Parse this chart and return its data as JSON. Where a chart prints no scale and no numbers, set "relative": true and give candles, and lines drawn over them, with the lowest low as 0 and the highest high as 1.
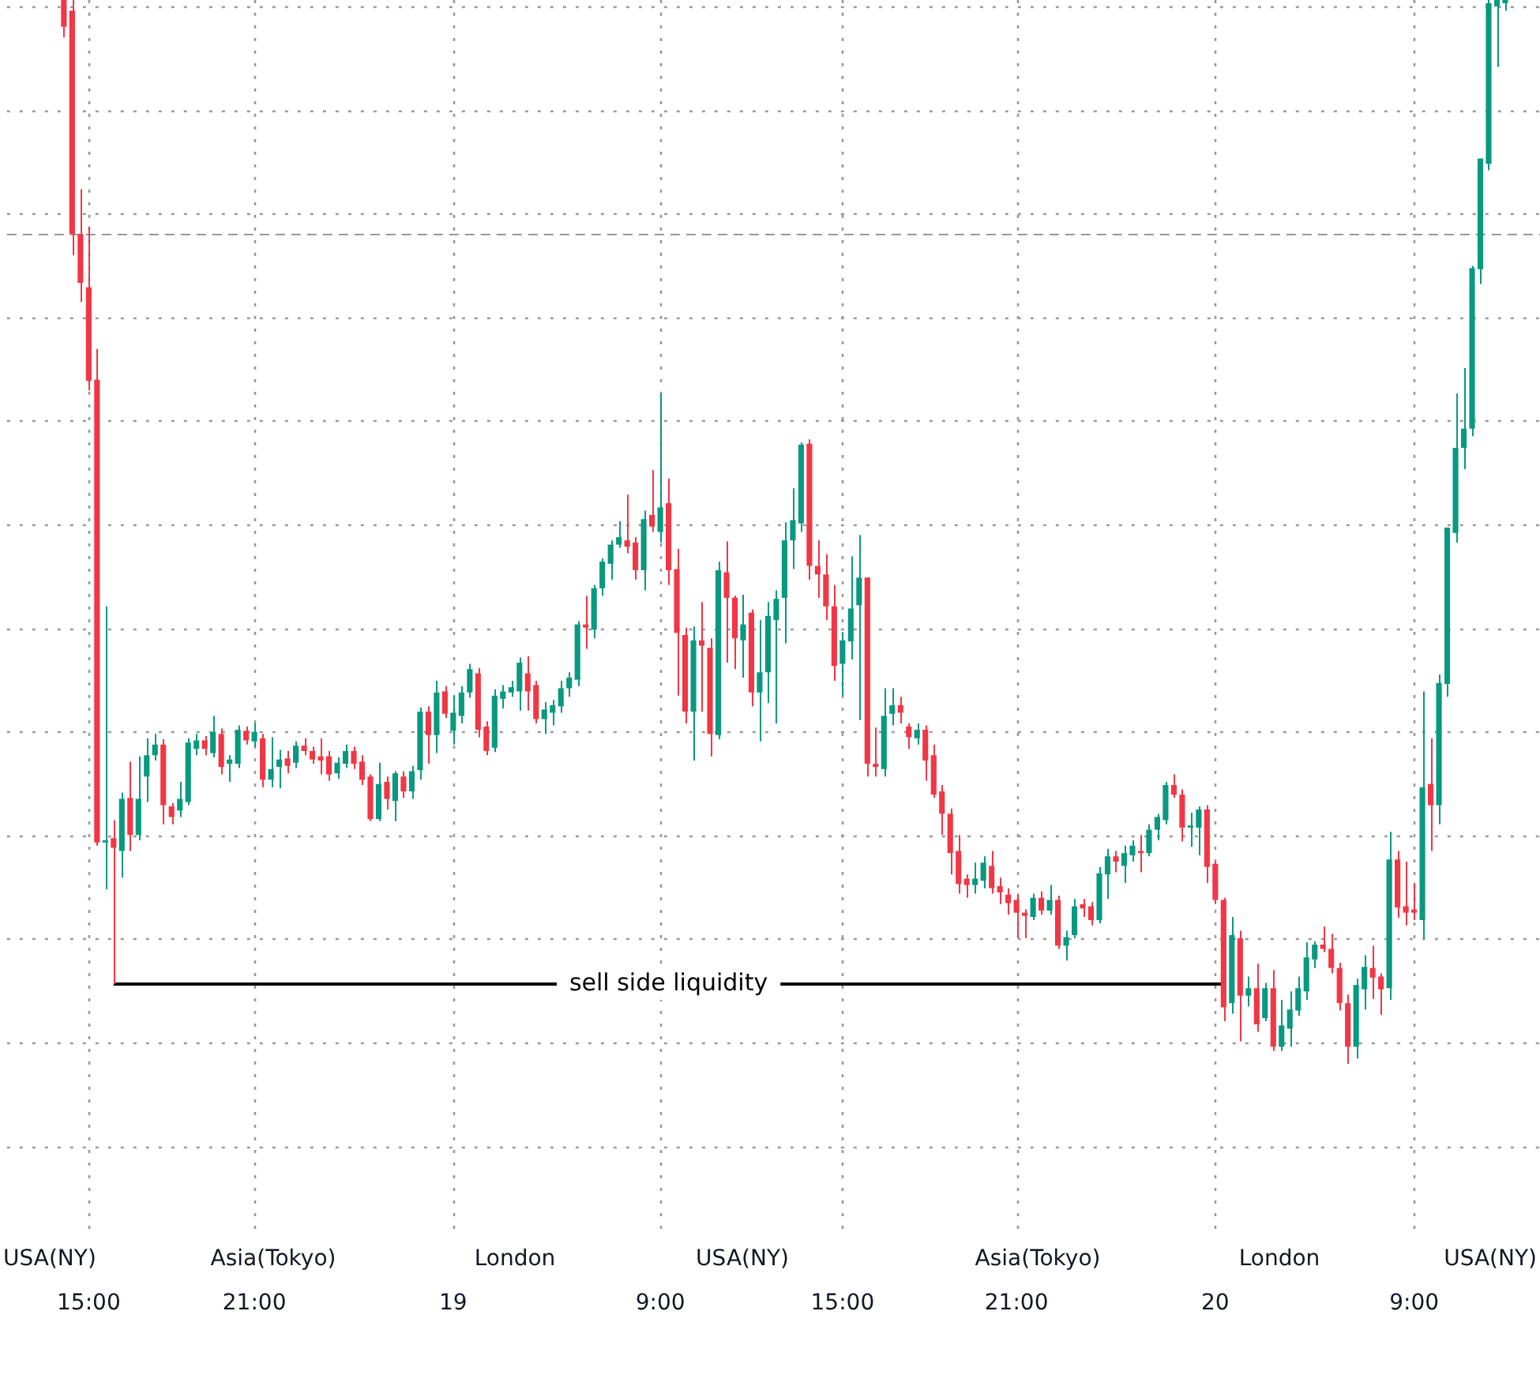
{
  "chart_data": {
    "type": "candlestick",
    "relative": true,
    "categories": [
      null,
      null,
      null,
      "15:00",
      null,
      null,
      null,
      null,
      null,
      null,
      null,
      null,
      null,
      null,
      null,
      null,
      null,
      null,
      null,
      null,
      null,
      null,
      null,
      "21:00",
      null,
      null,
      null,
      null,
      null,
      null,
      null,
      null,
      null,
      null,
      null,
      null,
      null,
      null,
      null,
      null,
      null,
      null,
      null,
      null,
      null,
      null,
      null,
      "19",
      null,
      null,
      null,
      null,
      null,
      null,
      null,
      null,
      null,
      null,
      null,
      null,
      null,
      null,
      null,
      null,
      null,
      null,
      null,
      null,
      null,
      null,
      null,
      null,
      "9:00",
      null,
      null,
      null,
      null,
      null,
      null,
      null,
      null,
      null,
      null,
      null,
      null,
      null,
      null,
      null,
      null,
      null,
      null,
      null,
      null,
      null,
      "15:00",
      null,
      null,
      null,
      null,
      null,
      null,
      null,
      null,
      null,
      null,
      null,
      null,
      null,
      null,
      null,
      null,
      null,
      null,
      null,
      null,
      "21:00",
      null,
      null,
      null,
      null,
      null,
      null,
      null,
      null,
      null,
      null,
      null,
      null,
      null,
      null,
      null,
      null,
      null,
      null,
      null,
      null,
      null,
      null,
      null,
      "20",
      null,
      null,
      null,
      null,
      null,
      null,
      null,
      null,
      null,
      null,
      null,
      null,
      null,
      null,
      null,
      null,
      null,
      null,
      null,
      null,
      null,
      null,
      null,
      "9:00",
      null,
      null,
      null,
      null,
      null,
      null,
      null,
      null,
      null,
      null,
      null
    ],
    "ohlc": [
      [
        1.0,
        1.0,
        0.965,
        0.975
      ],
      [
        0.99,
        1.0,
        0.76,
        0.78
      ],
      [
        0.78,
        0.822,
        0.716,
        0.734
      ],
      [
        0.73,
        0.787,
        0.633,
        0.642
      ],
      [
        0.643,
        0.672,
        0.205,
        0.208
      ],
      [
        0.208,
        0.43,
        0.164,
        0.21
      ],
      [
        0.212,
        0.229,
        0.075,
        0.203
      ],
      [
        0.2,
        0.255,
        0.175,
        0.249
      ],
      [
        0.25,
        0.284,
        0.2,
        0.215
      ],
      [
        0.215,
        0.289,
        0.21,
        0.249
      ],
      [
        0.27,
        0.306,
        0.246,
        0.29
      ],
      [
        0.29,
        0.31,
        0.285,
        0.3
      ],
      [
        0.3,
        0.305,
        0.225,
        0.243
      ],
      [
        0.242,
        0.245,
        0.225,
        0.232
      ],
      [
        0.238,
        0.265,
        0.232,
        0.249
      ],
      [
        0.246,
        0.306,
        0.243,
        0.302
      ],
      [
        0.296,
        0.31,
        0.29,
        0.304
      ],
      [
        0.304,
        0.308,
        0.29,
        0.296
      ],
      [
        0.292,
        0.327,
        0.288,
        0.312
      ],
      [
        0.31,
        0.315,
        0.272,
        0.279
      ],
      [
        0.282,
        0.29,
        0.265,
        0.286
      ],
      [
        0.282,
        0.318,
        0.278,
        0.314
      ],
      [
        0.313,
        0.317,
        0.3,
        0.304
      ],
      [
        0.303,
        0.32,
        0.298,
        0.312
      ],
      [
        0.306,
        0.31,
        0.26,
        0.267
      ],
      [
        0.267,
        0.307,
        0.26,
        0.277
      ],
      [
        0.279,
        0.295,
        0.259,
        0.286
      ],
      [
        0.287,
        0.294,
        0.273,
        0.28
      ],
      [
        0.283,
        0.303,
        0.278,
        0.299
      ],
      [
        0.299,
        0.306,
        0.29,
        0.294
      ],
      [
        0.294,
        0.298,
        0.282,
        0.286
      ],
      [
        0.289,
        0.306,
        0.272,
        0.285
      ],
      [
        0.289,
        0.294,
        0.266,
        0.272
      ],
      [
        0.273,
        0.288,
        0.268,
        0.283
      ],
      [
        0.282,
        0.3,
        0.278,
        0.294
      ],
      [
        0.294,
        0.298,
        0.277,
        0.282
      ],
      [
        0.284,
        0.29,
        0.262,
        0.267
      ],
      [
        0.27,
        0.272,
        0.228,
        0.23
      ],
      [
        0.23,
        0.283,
        0.228,
        0.263
      ],
      [
        0.265,
        0.27,
        0.239,
        0.249
      ],
      [
        0.247,
        0.275,
        0.228,
        0.273
      ],
      [
        0.27,
        0.275,
        0.25,
        0.256
      ],
      [
        0.256,
        0.28,
        0.249,
        0.275
      ],
      [
        0.276,
        0.335,
        0.267,
        0.331
      ],
      [
        0.331,
        0.336,
        0.282,
        0.309
      ],
      [
        0.309,
        0.36,
        0.292,
        0.349
      ],
      [
        0.35,
        0.355,
        0.325,
        0.329
      ],
      [
        0.313,
        0.346,
        0.3,
        0.33
      ],
      [
        0.327,
        0.355,
        0.32,
        0.349
      ],
      [
        0.349,
        0.376,
        0.344,
        0.371
      ],
      [
        0.367,
        0.372,
        0.307,
        0.314
      ],
      [
        0.317,
        0.322,
        0.29,
        0.294
      ],
      [
        0.297,
        0.352,
        0.293,
        0.346
      ],
      [
        0.343,
        0.356,
        0.334,
        0.35
      ],
      [
        0.349,
        0.36,
        0.345,
        0.354
      ],
      [
        0.35,
        0.382,
        0.332,
        0.377
      ],
      [
        0.367,
        0.383,
        0.332,
        0.35
      ],
      [
        0.356,
        0.36,
        0.32,
        0.324
      ],
      [
        0.324,
        0.34,
        0.31,
        0.333
      ],
      [
        0.33,
        0.342,
        0.318,
        0.337
      ],
      [
        0.336,
        0.36,
        0.33,
        0.353
      ],
      [
        0.353,
        0.368,
        0.345,
        0.363
      ],
      [
        0.361,
        0.416,
        0.355,
        0.413
      ],
      [
        0.413,
        0.44,
        0.39,
        0.41
      ],
      [
        0.408,
        0.45,
        0.4,
        0.447
      ],
      [
        0.447,
        0.475,
        0.44,
        0.472
      ],
      [
        0.47,
        0.492,
        0.455,
        0.488
      ],
      [
        0.488,
        0.51,
        0.485,
        0.495
      ],
      [
        0.492,
        0.535,
        0.48,
        0.486
      ],
      [
        0.49,
        0.495,
        0.455,
        0.464
      ],
      [
        0.464,
        0.52,
        0.445,
        0.512
      ],
      [
        0.516,
        0.558,
        0.5,
        0.505
      ],
      [
        0.5,
        0.63,
        0.49,
        0.523
      ],
      [
        0.527,
        0.55,
        0.45,
        0.464
      ],
      [
        0.465,
        0.484,
        0.346,
        0.405
      ],
      [
        0.403,
        0.41,
        0.32,
        0.331
      ],
      [
        0.331,
        0.411,
        0.285,
        0.398
      ],
      [
        0.398,
        0.434,
        0.331,
        0.393
      ],
      [
        0.391,
        0.4,
        0.289,
        0.31
      ],
      [
        0.309,
        0.472,
        0.305,
        0.464
      ],
      [
        0.462,
        0.491,
        0.377,
        0.438
      ],
      [
        0.438,
        0.44,
        0.371,
        0.4
      ],
      [
        0.398,
        0.441,
        0.363,
        0.413
      ],
      [
        0.424,
        0.427,
        0.336,
        0.349
      ],
      [
        0.349,
        0.417,
        0.303,
        0.368
      ],
      [
        0.368,
        0.434,
        0.339,
        0.421
      ],
      [
        0.417,
        0.445,
        0.32,
        0.437
      ],
      [
        0.438,
        0.509,
        0.395,
        0.492
      ],
      [
        0.492,
        0.541,
        0.465,
        0.511
      ],
      [
        0.508,
        0.584,
        0.5,
        0.582
      ],
      [
        0.583,
        0.587,
        0.455,
        0.468
      ],
      [
        0.468,
        0.492,
        0.438,
        0.46
      ],
      [
        0.46,
        0.479,
        0.417,
        0.43
      ],
      [
        0.43,
        0.45,
        0.36,
        0.374
      ],
      [
        0.376,
        0.405,
        0.346,
        0.398
      ],
      [
        0.397,
        0.477,
        0.38,
        0.428
      ],
      [
        0.431,
        0.497,
        0.323,
        0.457
      ],
      [
        0.457,
        0.457,
        0.27,
        0.282
      ],
      [
        0.282,
        0.316,
        0.27,
        0.279
      ],
      [
        0.277,
        0.353,
        0.27,
        0.327
      ],
      [
        0.329,
        0.353,
        0.318,
        0.337
      ],
      [
        0.337,
        0.345,
        0.32,
        0.33
      ],
      [
        0.317,
        0.32,
        0.296,
        0.307
      ],
      [
        0.306,
        0.32,
        0.3,
        0.314
      ],
      [
        0.314,
        0.318,
        0.266,
        0.285
      ],
      [
        0.29,
        0.3,
        0.25,
        0.253
      ],
      [
        0.256,
        0.262,
        0.215,
        0.235
      ],
      [
        0.235,
        0.24,
        0.178,
        0.198
      ],
      [
        0.2,
        0.215,
        0.16,
        0.169
      ],
      [
        0.174,
        0.178,
        0.156,
        0.168
      ],
      [
        0.168,
        0.189,
        0.16,
        0.174
      ],
      [
        0.172,
        0.195,
        0.165,
        0.189
      ],
      [
        0.186,
        0.2,
        0.16,
        0.165
      ],
      [
        0.167,
        0.175,
        0.15,
        0.161
      ],
      [
        0.159,
        0.165,
        0.14,
        0.151
      ],
      [
        0.154,
        0.16,
        0.118,
        0.142
      ],
      [
        0.142,
        0.145,
        0.118,
        0.139
      ],
      [
        0.138,
        0.16,
        0.135,
        0.156
      ],
      [
        0.156,
        0.162,
        0.14,
        0.144
      ],
      [
        0.144,
        0.168,
        0.14,
        0.154
      ],
      [
        0.154,
        0.158,
        0.108,
        0.111
      ],
      [
        0.111,
        0.125,
        0.097,
        0.119
      ],
      [
        0.121,
        0.155,
        0.118,
        0.148
      ],
      [
        0.15,
        0.155,
        0.138,
        0.146
      ],
      [
        0.148,
        0.152,
        0.13,
        0.135
      ],
      [
        0.135,
        0.185,
        0.132,
        0.179
      ],
      [
        0.178,
        0.202,
        0.155,
        0.195
      ],
      [
        0.195,
        0.2,
        0.18,
        0.19
      ],
      [
        0.186,
        0.205,
        0.17,
        0.198
      ],
      [
        0.196,
        0.21,
        0.19,
        0.205
      ],
      [
        0.2,
        0.215,
        0.18,
        0.198
      ],
      [
        0.198,
        0.225,
        0.195,
        0.22
      ],
      [
        0.22,
        0.235,
        0.21,
        0.232
      ],
      [
        0.229,
        0.265,
        0.225,
        0.262
      ],
      [
        0.262,
        0.272,
        0.25,
        0.253
      ],
      [
        0.253,
        0.258,
        0.209,
        0.222
      ],
      [
        0.222,
        0.236,
        0.204,
        0.224
      ],
      [
        0.222,
        0.242,
        0.196,
        0.239
      ],
      [
        0.239,
        0.243,
        0.17,
        0.185
      ],
      [
        0.188,
        0.19,
        0.15,
        0.154
      ],
      [
        0.154,
        0.156,
        0.04,
        0.053
      ],
      [
        0.057,
        0.138,
        0.047,
        0.121
      ],
      [
        0.118,
        0.125,
        0.021,
        0.064
      ],
      [
        0.064,
        0.082,
        0.054,
        0.071
      ],
      [
        0.071,
        0.094,
        0.03,
        0.037
      ],
      [
        0.043,
        0.076,
        0.04,
        0.071
      ],
      [
        0.071,
        0.088,
        0.012,
        0.016
      ],
      [
        0.016,
        0.06,
        0.012,
        0.036
      ],
      [
        0.033,
        0.068,
        0.016,
        0.051
      ],
      [
        0.05,
        0.082,
        0.045,
        0.071
      ],
      [
        0.068,
        0.114,
        0.06,
        0.1
      ],
      [
        0.098,
        0.115,
        0.09,
        0.112
      ],
      [
        0.112,
        0.129,
        0.105,
        0.108
      ],
      [
        0.108,
        0.122,
        0.085,
        0.09
      ],
      [
        0.09,
        0.095,
        0.05,
        0.057
      ],
      [
        0.057,
        0.065,
        0.0,
        0.016
      ],
      [
        0.016,
        0.08,
        0.005,
        0.074
      ],
      [
        0.07,
        0.102,
        0.051,
        0.091
      ],
      [
        0.09,
        0.111,
        0.061,
        0.081
      ],
      [
        0.082,
        0.085,
        0.046,
        0.07
      ],
      [
        0.071,
        0.218,
        0.06,
        0.192
      ],
      [
        0.192,
        0.2,
        0.137,
        0.147
      ],
      [
        0.148,
        0.19,
        0.13,
        0.142
      ],
      [
        0.145,
        0.17,
        0.135,
        0.142
      ],
      [
        0.135,
        0.35,
        0.118,
        0.26
      ],
      [
        0.263,
        0.306,
        0.2,
        0.243
      ],
      [
        0.243,
        0.366,
        0.225,
        0.358
      ],
      [
        0.357,
        0.504,
        0.345,
        0.504
      ],
      [
        0.499,
        0.63,
        0.49,
        0.579
      ],
      [
        0.579,
        0.654,
        0.559,
        0.597
      ],
      [
        0.597,
        0.75,
        0.59,
        0.748
      ],
      [
        0.747,
        0.851,
        0.733,
        0.851
      ],
      [
        0.846,
        1.0,
        0.84,
        0.997
      ],
      [
        0.994,
        1.0,
        0.937,
        1.0
      ],
      [
        0.997,
        1.0,
        0.99,
        1.0
      ]
    ],
    "series": [
      {
        "type": "line",
        "name": "sell side liquidity",
        "color": "#000000",
        "values": [
          null,
          null,
          null,
          null,
          null,
          null,
          0.075,
          null,
          null,
          null,
          null,
          null,
          null,
          null,
          null,
          null,
          null,
          null,
          null,
          null,
          null,
          null,
          null,
          null,
          null,
          null,
          null,
          null,
          null,
          null,
          null,
          null,
          null,
          null,
          null,
          null,
          null,
          null,
          null,
          null,
          null,
          null,
          null,
          null,
          null,
          null,
          null,
          null,
          null,
          null,
          null,
          null,
          null,
          null,
          null,
          null,
          null,
          null,
          null,
          null,
          null,
          null,
          null,
          null,
          null,
          null,
          null,
          null,
          null,
          null,
          null,
          null,
          null,
          null,
          null,
          null,
          null,
          null,
          null,
          null,
          null,
          null,
          null,
          null,
          null,
          null,
          null,
          null,
          null,
          null,
          null,
          null,
          null,
          null,
          null,
          null,
          null,
          null,
          null,
          null,
          null,
          null,
          null,
          null,
          null,
          null,
          null,
          null,
          null,
          null,
          null,
          null,
          null,
          null,
          null,
          null,
          null,
          null,
          null,
          null,
          null,
          null,
          null,
          null,
          null,
          null,
          null,
          null,
          null,
          null,
          null,
          null,
          null,
          null,
          null,
          null,
          null,
          null,
          null,
          null,
          0.075,
          null,
          null,
          null,
          null,
          null,
          null,
          null,
          null,
          null,
          null,
          null,
          null,
          null,
          null,
          null,
          null,
          null,
          null,
          null,
          null,
          null,
          null,
          null,
          null,
          null,
          null,
          null,
          null,
          null,
          null,
          null,
          null,
          null,
          null
        ]
      }
    ],
    "ref_lines": [
      {
        "axis": "y",
        "value": 0.78,
        "color": "#9598a1",
        "line_style": "dashed"
      }
    ],
    "annotations": [
      "USA(NY)",
      "Asia(Tokyo)",
      "London",
      "USA(NY)",
      "Asia(Tokyo)",
      "London",
      "USA(NY)"
    ],
    "grid": true
  }
}
